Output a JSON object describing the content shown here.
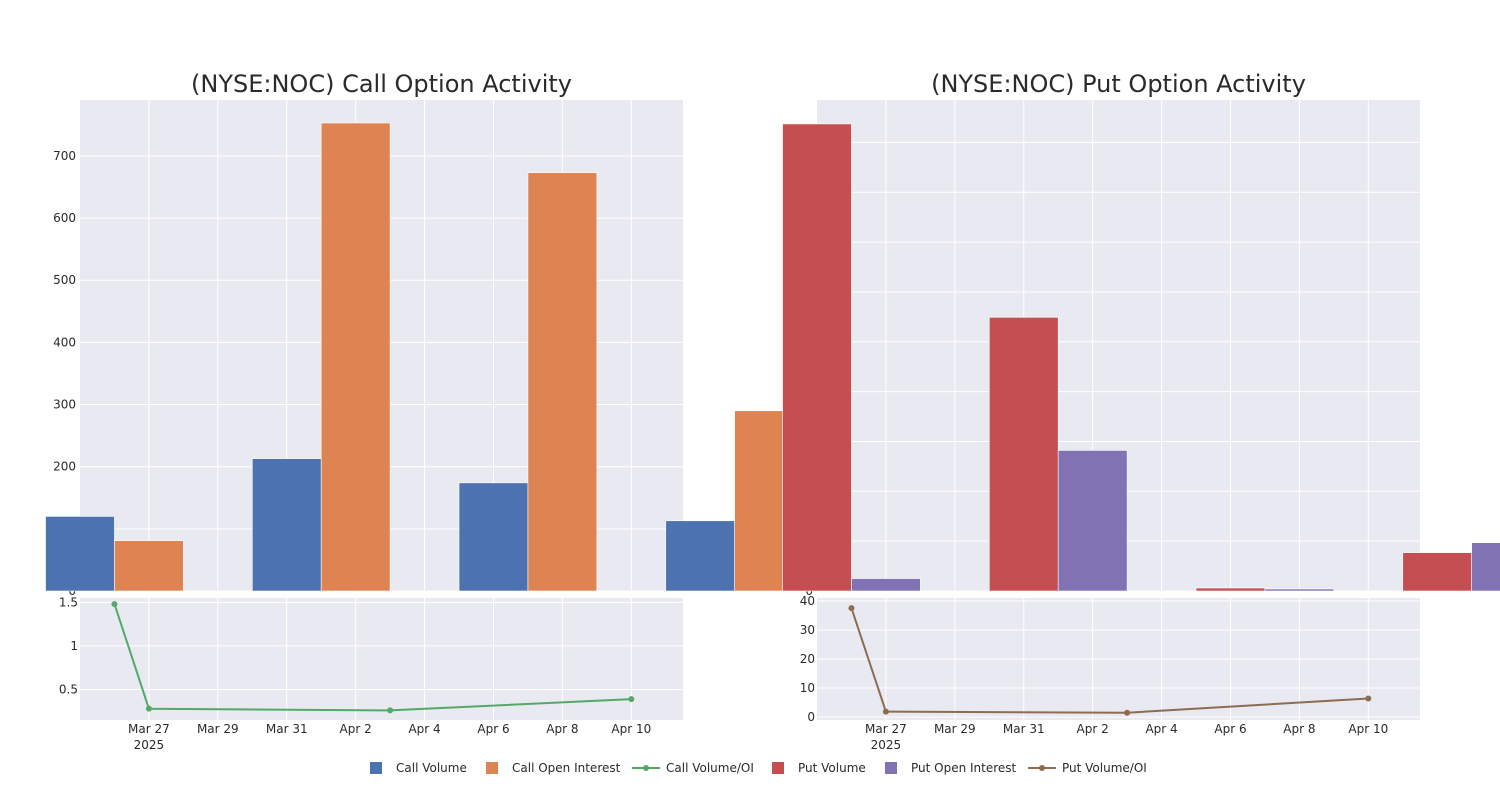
{
  "colors": {
    "call_volume": "#4c72b0",
    "call_oi": "#dd8452",
    "call_ratio": "#55a868",
    "put_volume": "#c44e52",
    "put_oi": "#8172b3",
    "put_ratio": "#8c6d50"
  },
  "legend": [
    "Call Volume",
    "Call Open Interest",
    "Call Volume/OI",
    "Put Volume",
    "Put Open Interest",
    "Put Volume/OI"
  ],
  "chart_data": [
    {
      "type": "bar",
      "title": "(NYSE:NOC) Call Option Activity",
      "categories": [
        "2025-03-26",
        "2025-04-01",
        "2025-04-07",
        "2025-04-13"
      ],
      "series": [
        {
          "name": "Call Volume",
          "values": [
            120,
            213,
            174,
            113
          ]
        },
        {
          "name": "Call Open Interest",
          "values": [
            81,
            753,
            673,
            290
          ]
        }
      ],
      "ylim": [
        0,
        790
      ],
      "yticks": [
        0,
        100,
        200,
        300,
        400,
        500,
        600,
        700
      ]
    },
    {
      "type": "line",
      "title": "",
      "x": [
        "2025-03-26",
        "2025-03-27",
        "2025-04-03",
        "2025-04-10"
      ],
      "series": [
        {
          "name": "Call Volume/OI",
          "values": [
            1.48,
            0.28,
            0.26,
            0.39
          ]
        }
      ],
      "ylim": [
        0.15,
        1.55
      ],
      "yticks": [
        0.5,
        1,
        1.5
      ],
      "ytick_labels": [
        "0.5",
        "1",
        "1.5"
      ],
      "xticks": [
        "2025-03-27",
        "2025-03-29",
        "2025-03-31",
        "2025-04-02",
        "2025-04-04",
        "2025-04-06",
        "2025-04-08",
        "2025-04-10"
      ],
      "xtick_labels": [
        "Mar 27",
        "Mar 29",
        "Mar 31",
        "Apr 2",
        "Apr 4",
        "Apr 6",
        "Apr 8",
        "Apr 10"
      ],
      "xtick_year": "2025"
    },
    {
      "type": "bar",
      "title": "(NYSE:NOC) Put Option Activity",
      "categories": [
        "2025-03-26",
        "2025-04-01",
        "2025-04-07",
        "2025-04-13"
      ],
      "series": [
        {
          "name": "Put Volume",
          "values": [
            937,
            549,
            6,
            77
          ]
        },
        {
          "name": "Put Open Interest",
          "values": [
            25,
            282,
            4,
            97
          ]
        }
      ],
      "ylim": [
        0,
        985
      ],
      "yticks": [
        0,
        100,
        200,
        300,
        400,
        500,
        600,
        700,
        800,
        900
      ]
    },
    {
      "type": "line",
      "title": "",
      "x": [
        "2025-03-26",
        "2025-03-27",
        "2025-04-03",
        "2025-04-10"
      ],
      "series": [
        {
          "name": "Put Volume/OI",
          "values": [
            37.5,
            1.9,
            1.5,
            6.4
          ]
        }
      ],
      "ylim": [
        -1,
        41
      ],
      "yticks": [
        0,
        10,
        20,
        30,
        40
      ],
      "ytick_labels": [
        "0",
        "10",
        "20",
        "30",
        "40"
      ],
      "xticks": [
        "2025-03-27",
        "2025-03-29",
        "2025-03-31",
        "2025-04-02",
        "2025-04-04",
        "2025-04-06",
        "2025-04-08",
        "2025-04-10"
      ],
      "xtick_labels": [
        "Mar 27",
        "Mar 29",
        "Mar 31",
        "Apr 2",
        "Apr 4",
        "Apr 6",
        "Apr 8",
        "Apr 10"
      ],
      "xtick_year": "2025"
    }
  ]
}
